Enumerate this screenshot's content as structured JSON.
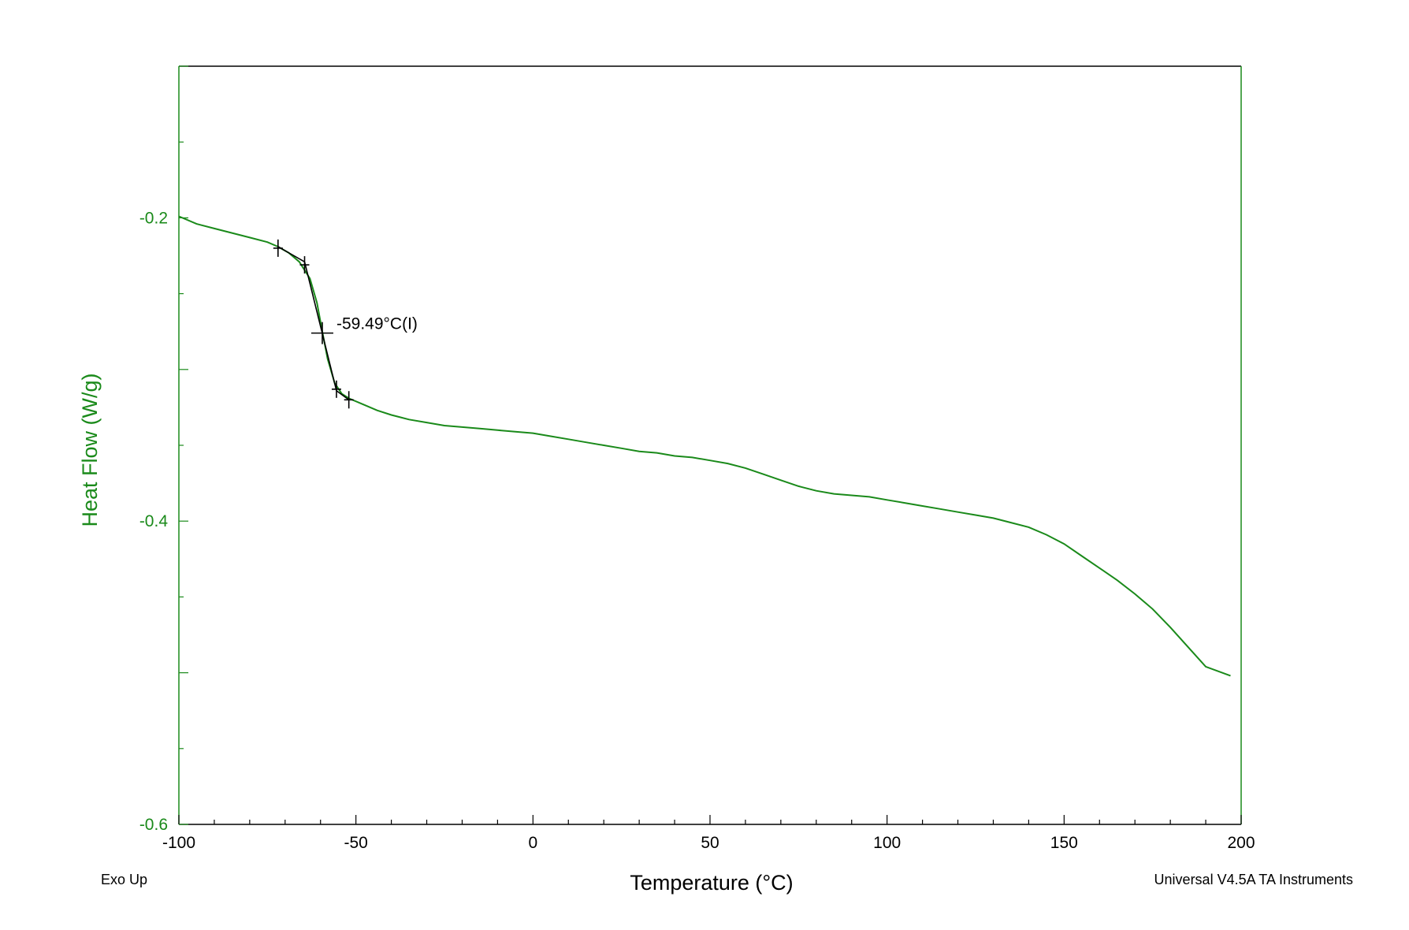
{
  "chart_data": {
    "type": "line",
    "title": "",
    "xlabel": "Temperature (°C)",
    "ylabel": "Heat Flow (W/g)",
    "xlim": [
      -100,
      200
    ],
    "ylim": [
      -0.6,
      -0.1
    ],
    "x_ticks": [
      -100,
      -50,
      0,
      50,
      100,
      150,
      200
    ],
    "x_tick_labels": [
      "-100",
      "-50",
      "0",
      "50",
      "100",
      "150",
      "200"
    ],
    "y_ticks": [
      -0.6,
      -0.4,
      -0.2
    ],
    "y_tick_labels": [
      "-0.6",
      "-0.4",
      "-0.2"
    ],
    "grid": false,
    "series": [
      {
        "color": "#1a8a1a",
        "x": [
          -100,
          -95,
          -90,
          -85,
          -80,
          -75,
          -72,
          -69,
          -66,
          -63,
          -61,
          -59.5,
          -58,
          -56,
          -54,
          -52,
          -48,
          -44,
          -40,
          -35,
          -30,
          -25,
          -20,
          -15,
          -10,
          -5,
          0,
          5,
          10,
          15,
          20,
          25,
          30,
          35,
          40,
          45,
          50,
          55,
          60,
          65,
          70,
          75,
          80,
          85,
          90,
          95,
          100,
          105,
          110,
          115,
          120,
          125,
          130,
          135,
          140,
          145,
          150,
          155,
          160,
          165,
          170,
          175,
          180,
          185,
          190,
          197
        ],
        "y": [
          -0.199,
          -0.204,
          -0.207,
          -0.21,
          -0.213,
          -0.216,
          -0.219,
          -0.223,
          -0.229,
          -0.24,
          -0.256,
          -0.275,
          -0.293,
          -0.309,
          -0.316,
          -0.319,
          -0.323,
          -0.327,
          -0.33,
          -0.333,
          -0.335,
          -0.337,
          -0.338,
          -0.339,
          -0.34,
          -0.341,
          -0.342,
          -0.344,
          -0.346,
          -0.348,
          -0.35,
          -0.352,
          -0.354,
          -0.355,
          -0.357,
          -0.358,
          -0.36,
          -0.362,
          -0.365,
          -0.369,
          -0.373,
          -0.377,
          -0.38,
          -0.382,
          -0.383,
          -0.384,
          -0.386,
          -0.388,
          -0.39,
          -0.392,
          -0.394,
          -0.396,
          -0.398,
          -0.401,
          -0.404,
          -0.409,
          -0.415,
          -0.423,
          -0.431,
          -0.439,
          -0.448,
          -0.458,
          -0.47,
          -0.483,
          -0.496,
          -0.502
        ]
      }
    ],
    "analysis": {
      "color": "#000000",
      "tangent_before": [
        [
          -72,
          -0.219
        ],
        [
          -64.5,
          -0.229
        ]
      ],
      "tangent_transition": [
        [
          -64.5,
          -0.229
        ],
        [
          -55.5,
          -0.314
        ]
      ],
      "tangent_after": [
        [
          -55.5,
          -0.314
        ],
        [
          -52,
          -0.32
        ]
      ],
      "markers": [
        [
          -72,
          -0.22
        ],
        [
          -64.5,
          -0.231
        ],
        [
          -59.5,
          -0.276
        ],
        [
          -55.5,
          -0.313
        ],
        [
          -52,
          -0.32
        ]
      ],
      "inflection_label": "-59.49°C(I)"
    },
    "colors": {
      "axis": "#1a8a1a",
      "curve": "#1a8a1a",
      "frame_top": "#000000",
      "text": "#000000"
    }
  },
  "footer": {
    "left": "Exo Up",
    "right": "Universal V4.5A TA Instruments"
  }
}
